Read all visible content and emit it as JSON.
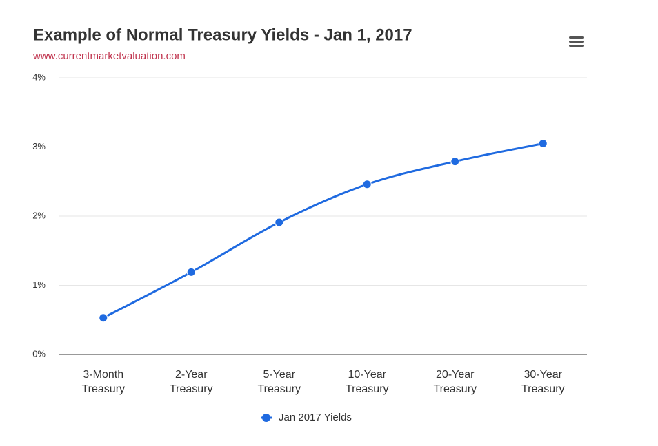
{
  "chart_data": {
    "type": "line",
    "title": "Example of Normal Treasury Yields - Jan 1, 2017",
    "subtitle": "www.currentmarketvaluation.com",
    "categories": [
      "3-Month Treasury",
      "2-Year Treasury",
      "5-Year Treasury",
      "10-Year Treasury",
      "20-Year Treasury",
      "30-Year Treasury"
    ],
    "series": [
      {
        "name": "Jan 2017 Yields",
        "color": "#1f6ae0",
        "values": [
          0.53,
          1.19,
          1.91,
          2.46,
          2.79,
          3.05
        ]
      }
    ],
    "ylim": [
      0,
      4
    ],
    "yticks": [
      {
        "value": 0,
        "label": "0%"
      },
      {
        "value": 1,
        "label": "1%"
      },
      {
        "value": 2,
        "label": "2%"
      },
      {
        "value": 3,
        "label": "3%"
      },
      {
        "value": 4,
        "label": "4%"
      }
    ],
    "grid": true
  }
}
